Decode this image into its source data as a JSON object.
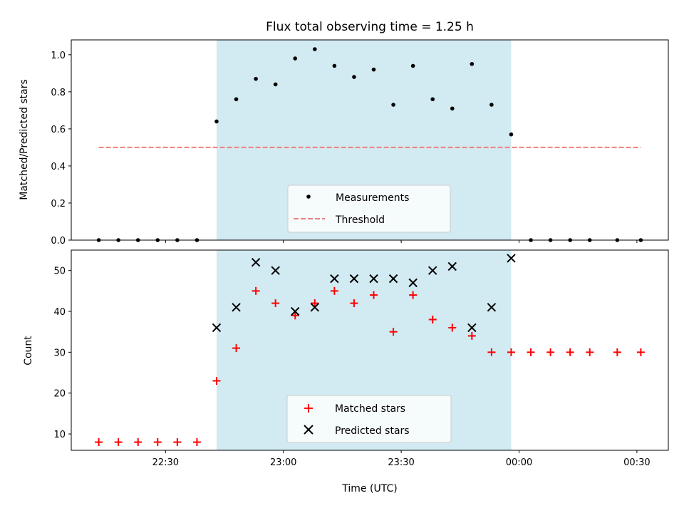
{
  "chart_data": [
    {
      "type": "scatter",
      "title": "Flux total observing time = 1.25 h",
      "xlabel": "",
      "ylabel": "Matched/Predicted stars",
      "ylim": [
        0,
        1.08
      ],
      "yticks": [
        "0.0",
        "0.2",
        "0.4",
        "0.6",
        "0.8",
        "1.0"
      ],
      "xlim": [
        "22:06",
        "00:38"
      ],
      "shaded_span": [
        "22:43",
        "23:58"
      ],
      "grid": false,
      "legend": "lower center",
      "series": [
        {
          "name": "Measurements",
          "marker": "dot",
          "color": "#000000",
          "x": [
            "22:13",
            "22:18",
            "22:23",
            "22:28",
            "22:33",
            "22:38",
            "22:43",
            "22:48",
            "22:53",
            "22:58",
            "23:03",
            "23:08",
            "23:13",
            "23:18",
            "23:23",
            "23:28",
            "23:33",
            "23:38",
            "23:43",
            "23:48",
            "23:53",
            "23:58",
            "00:03",
            "00:08",
            "00:13",
            "00:18",
            "00:25",
            "00:31"
          ],
          "values": [
            0,
            0,
            0,
            0,
            0,
            0,
            0.64,
            0.76,
            0.87,
            0.84,
            0.98,
            1.03,
            0.94,
            0.88,
            0.92,
            0.73,
            0.94,
            0.76,
            0.71,
            0.95,
            0.73,
            0.57,
            0,
            0,
            0,
            0,
            0,
            0
          ]
        },
        {
          "name": "Threshold",
          "style": "dashed",
          "color": "#f08080",
          "x": [
            "22:13",
            "00:31"
          ],
          "values": [
            0.5,
            0.5
          ]
        }
      ]
    },
    {
      "type": "scatter",
      "title": "",
      "xlabel": "Time (UTC)",
      "ylabel": "Count",
      "ylim": [
        6,
        55
      ],
      "yticks": [
        "10",
        "20",
        "30",
        "40",
        "50"
      ],
      "xticks": [
        "22:30",
        "23:00",
        "23:30",
        "00:00",
        "00:30"
      ],
      "xlim": [
        "22:06",
        "00:38"
      ],
      "shaded_span": [
        "22:43",
        "23:58"
      ],
      "grid": false,
      "legend": "lower center",
      "series": [
        {
          "name": "Matched stars",
          "marker": "plus",
          "color": "#ff0000",
          "x": [
            "22:13",
            "22:18",
            "22:23",
            "22:28",
            "22:33",
            "22:38",
            "22:43",
            "22:48",
            "22:53",
            "22:58",
            "23:03",
            "23:08",
            "23:13",
            "23:18",
            "23:23",
            "23:28",
            "23:33",
            "23:38",
            "23:43",
            "23:48",
            "23:53",
            "23:58",
            "00:03",
            "00:08",
            "00:13",
            "00:18",
            "00:25",
            "00:31"
          ],
          "values": [
            8,
            8,
            8,
            8,
            8,
            8,
            23,
            31,
            45,
            42,
            39,
            42,
            45,
            42,
            44,
            35,
            44,
            38,
            36,
            34,
            30,
            30,
            30,
            30,
            30,
            30,
            30,
            30
          ]
        },
        {
          "name": "Predicted stars",
          "marker": "x",
          "color": "#000000",
          "x": [
            "22:43",
            "22:48",
            "22:53",
            "22:58",
            "23:03",
            "23:08",
            "23:13",
            "23:18",
            "23:23",
            "23:28",
            "23:33",
            "23:38",
            "23:43",
            "23:48",
            "23:53",
            "23:58"
          ],
          "values": [
            36,
            41,
            52,
            50,
            40,
            41,
            48,
            48,
            48,
            48,
            47,
            50,
            51,
            36,
            41,
            53
          ]
        }
      ]
    }
  ],
  "colors": {
    "shade": "#add8e6",
    "threshold": "#f08080",
    "matched": "#ff0000",
    "predicted": "#000000"
  }
}
